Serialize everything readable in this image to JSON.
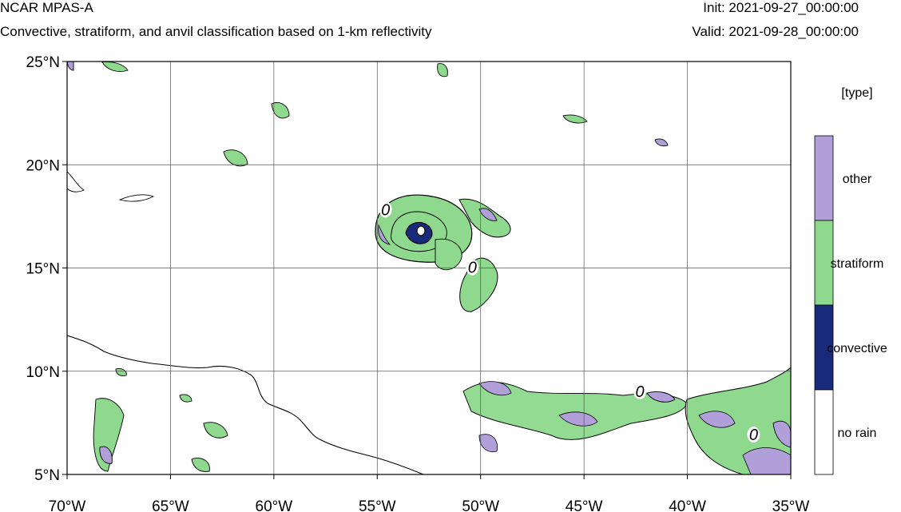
{
  "header": {
    "title": "NCAR MPAS-A",
    "subtitle": "Convective, stratiform, and anvil classification based on 1-km reflectivity",
    "init": "Init: 2021-09-27_00:00:00",
    "valid": "Valid: 2021-09-28_00:00:00"
  },
  "map": {
    "lon_range": [
      -70,
      -35
    ],
    "lat_range": [
      5,
      25
    ],
    "lon_ticks": [
      {
        "value": -70,
        "label": "70°W"
      },
      {
        "value": -65,
        "label": "65°W"
      },
      {
        "value": -60,
        "label": "60°W"
      },
      {
        "value": -55,
        "label": "55°W"
      },
      {
        "value": -50,
        "label": "50°W"
      },
      {
        "value": -45,
        "label": "45°W"
      },
      {
        "value": -40,
        "label": "40°W"
      },
      {
        "value": -35,
        "label": "35°W"
      }
    ],
    "lat_ticks": [
      {
        "value": 25,
        "label": "25°N"
      },
      {
        "value": 20,
        "label": "20°N"
      },
      {
        "value": 15,
        "label": "15°N"
      },
      {
        "value": 10,
        "label": "10°N"
      },
      {
        "value": 5,
        "label": "5°N"
      }
    ],
    "contour_labels": [
      {
        "text": "0",
        "lon": -54.6,
        "lat": 17.6
      },
      {
        "text": "0",
        "lon": -50.4,
        "lat": 14.8
      },
      {
        "text": "0",
        "lon": -42.3,
        "lat": 8.8
      },
      {
        "text": "0",
        "lon": -36.8,
        "lat": 6.7
      }
    ],
    "gridlines": true
  },
  "legend": {
    "title": "[type]",
    "items": [
      {
        "label": "other",
        "color": "#b19fd9"
      },
      {
        "label": "stratiform",
        "color": "#8ed98e"
      },
      {
        "label": "convective",
        "color": "#1a2a7a"
      },
      {
        "label": "no rain",
        "color": "#ffffff"
      }
    ]
  }
}
